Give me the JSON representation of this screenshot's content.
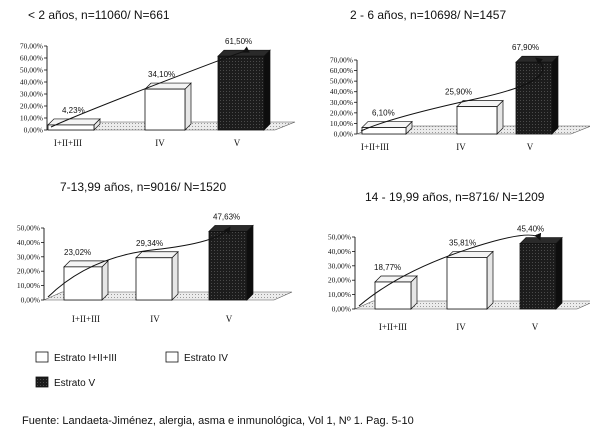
{
  "chart_data": [
    {
      "type": "bar",
      "title": "< 2 años, n=11060/ N=661",
      "categories": [
        "I+II+III",
        "IV",
        "V"
      ],
      "tick_labels": [
        "0,00%",
        "10,00%",
        "20,00%",
        "30,00%",
        "40,00%",
        "50,00%",
        "60,00%",
        "70,00%"
      ],
      "series": [
        {
          "values": [
            4.23,
            34.1,
            61.5
          ]
        }
      ],
      "value_labels": [
        "4,23%",
        "34,10%",
        "61,50%"
      ],
      "ylim": [
        0,
        70
      ],
      "trend_arrow": true
    },
    {
      "type": "bar",
      "title": "2 - 6 años, n=10698/ N=1457",
      "categories": [
        "I+II+III",
        "IV",
        "V"
      ],
      "tick_labels": [
        "0,00%",
        "10,00%",
        "20,00%",
        "30,00%",
        "40,00%",
        "50,00%",
        "60,00%",
        "70,00%"
      ],
      "series": [
        {
          "values": [
            6.1,
            25.9,
            67.9
          ]
        }
      ],
      "value_labels": [
        "6,10%",
        "25,90%",
        "67,90%"
      ],
      "ylim": [
        0,
        70
      ],
      "trend_arrow": true
    },
    {
      "type": "bar",
      "title": "7-13,99 años, n=9016/ N=1520",
      "categories": [
        "I+II+III",
        "IV",
        "V"
      ],
      "tick_labels": [
        "0,00%",
        "10,00%",
        "20,00%",
        "30,00%",
        "40,00%",
        "50,00%"
      ],
      "series": [
        {
          "values": [
            23.02,
            29.34,
            47.63
          ]
        }
      ],
      "value_labels": [
        "23,02%",
        "29,34%",
        "47,63%"
      ],
      "ylim": [
        0,
        50
      ],
      "trend_arrow": true
    },
    {
      "type": "bar",
      "title": "14 - 19,99 años, n=8716/ N=1209",
      "categories": [
        "I+II+III",
        "IV",
        "V"
      ],
      "tick_labels": [
        "0,00%",
        "10,00%",
        "20,00%",
        "30,00%",
        "40,00%",
        "50,00%"
      ],
      "series": [
        {
          "values": [
            18.77,
            35.81,
            45.4
          ]
        }
      ],
      "value_labels": [
        "18,77%",
        "35,81%",
        "45,40%"
      ],
      "ylim": [
        0,
        50
      ],
      "trend_arrow": true
    }
  ],
  "legend": [
    {
      "label": "Estrato I+II+III",
      "color": "#ffffff"
    },
    {
      "label": "Estrato IV",
      "color": "#ffffff"
    },
    {
      "label": "Estrato V",
      "color": "#1c1c1c"
    }
  ],
  "source": "Fuente: Landaeta-Jiménez, alergia, asma e inmunológica, Vol 1, Nº 1. Pag. 5-10",
  "colors": {
    "bar_light": "#ffffff",
    "bar_dark": "#1c1c1c",
    "floor": "#d4d4d4",
    "ink": "#111111"
  }
}
